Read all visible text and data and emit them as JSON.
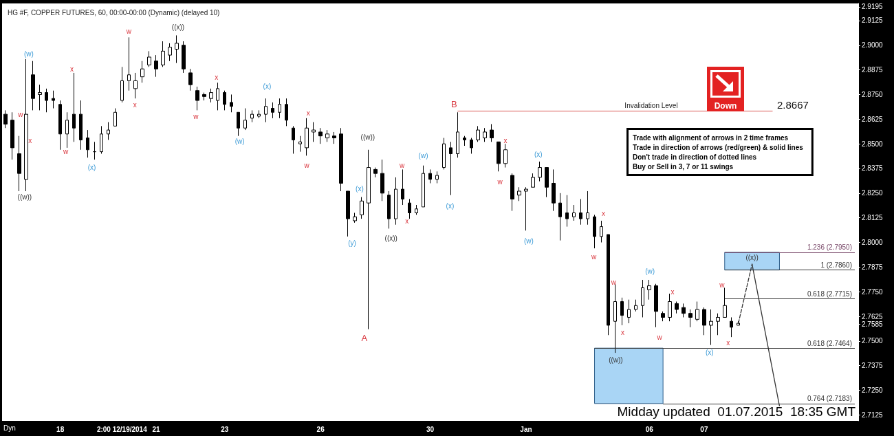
{
  "chart_data": {
    "type": "candlestick",
    "title": "HG #F, COPPER FUTURES, 60, 00:00-00:00 (Dynamic) (delayed 10)",
    "categories": [
      null,
      null,
      null,
      null,
      null,
      null,
      null,
      null,
      "18",
      null,
      null,
      null,
      null,
      null,
      null,
      null,
      null,
      "2:00 12/19/2014",
      null,
      null,
      null,
      null,
      "21",
      null,
      null,
      null,
      null,
      null,
      null,
      null,
      null,
      null,
      "23",
      null,
      null,
      null,
      null,
      null,
      null,
      null,
      null,
      null,
      null,
      null,
      null,
      null,
      "26",
      null,
      null,
      null,
      null,
      null,
      null,
      null,
      null,
      null,
      null,
      null,
      null,
      null,
      null,
      null,
      "30",
      null,
      null,
      null,
      null,
      null,
      null,
      null,
      null,
      null,
      null,
      null,
      null,
      null,
      "Jan",
      null,
      null,
      null,
      null,
      null,
      null,
      null,
      null,
      null,
      null,
      null,
      null,
      null,
      null,
      null,
      null,
      null,
      "06",
      null,
      null,
      null,
      null,
      null,
      null,
      null,
      "07",
      null,
      null,
      null,
      null,
      null,
      null,
      null,
      null,
      null,
      null,
      null,
      null,
      null,
      null,
      null,
      null,
      null,
      null,
      null,
      null,
      null,
      null
    ],
    "series": [
      {
        "color": "#000000",
        "ohlc": [
          [
            2.865,
            2.867,
            2.858,
            2.86
          ],
          [
            2.862,
            2.866,
            2.842,
            2.848
          ],
          [
            2.845,
            2.854,
            2.826,
            2.835
          ],
          [
            2.832,
            2.893,
            2.826,
            2.865
          ],
          [
            2.885,
            2.892,
            2.867,
            2.873
          ],
          [
            2.875,
            2.88,
            2.867,
            2.876
          ],
          [
            2.876,
            2.878,
            2.866,
            2.872
          ],
          [
            2.873,
            2.877,
            2.868,
            2.872
          ],
          [
            2.87,
            2.872,
            2.847,
            2.855
          ],
          [
            2.855,
            2.866,
            2.848,
            2.862
          ],
          [
            2.865,
            2.886,
            2.851,
            2.858
          ],
          [
            2.865,
            2.872,
            2.847,
            2.852
          ],
          [
            2.853,
            2.857,
            2.843,
            2.847
          ],
          [
            2.846,
            2.851,
            2.842,
            2.846
          ],
          [
            2.846,
            2.859,
            2.845,
            2.855
          ],
          [
            2.855,
            2.861,
            2.852,
            2.857
          ],
          [
            2.859,
            2.868,
            2.859,
            2.866
          ],
          [
            2.872,
            2.889,
            2.871,
            2.882
          ],
          [
            2.882,
            2.904,
            2.877,
            2.885
          ],
          [
            2.878,
            2.886,
            2.873,
            2.882
          ],
          [
            2.884,
            2.892,
            2.881,
            2.888
          ],
          [
            2.89,
            2.897,
            2.889,
            2.894
          ],
          [
            2.892,
            2.895,
            2.884,
            2.888
          ],
          [
            2.89,
            2.902,
            2.889,
            2.897
          ],
          [
            2.895,
            2.901,
            2.892,
            2.899
          ],
          [
            2.898,
            2.905,
            2.891,
            2.901
          ],
          [
            2.9,
            2.902,
            2.886,
            2.888
          ],
          [
            2.886,
            2.888,
            2.877,
            2.88
          ],
          [
            2.877,
            2.879,
            2.867,
            2.872
          ],
          [
            2.875,
            2.876,
            2.872,
            2.874
          ],
          [
            2.873,
            2.878,
            2.871,
            2.876
          ],
          [
            2.872,
            2.881,
            2.867,
            2.878
          ],
          [
            2.876,
            2.877,
            2.867,
            2.87
          ],
          [
            2.871,
            2.875,
            2.866,
            2.869
          ],
          [
            2.866,
            2.866,
            2.854,
            2.858
          ],
          [
            2.858,
            2.868,
            2.857,
            2.862
          ],
          [
            2.863,
            2.867,
            2.861,
            2.865
          ],
          [
            2.864,
            2.867,
            2.863,
            2.865
          ],
          [
            2.865,
            2.873,
            2.861,
            2.869
          ],
          [
            2.868,
            2.871,
            2.863,
            2.866
          ],
          [
            2.866,
            2.873,
            2.863,
            2.87
          ],
          [
            2.87,
            2.873,
            2.859,
            2.862
          ],
          [
            2.858,
            2.859,
            2.845,
            2.852
          ],
          [
            2.85,
            2.854,
            2.846,
            2.851
          ],
          [
            2.848,
            2.863,
            2.844,
            2.858
          ],
          [
            2.856,
            2.861,
            2.851,
            2.857
          ],
          [
            2.856,
            2.858,
            2.85,
            2.854
          ],
          [
            2.853,
            2.857,
            2.851,
            2.855
          ],
          [
            2.854,
            2.856,
            2.85,
            2.853
          ],
          [
            2.855,
            2.858,
            2.826,
            2.83
          ],
          [
            2.826,
            2.826,
            2.803,
            2.812
          ],
          [
            2.811,
            2.815,
            2.81,
            2.813
          ],
          [
            2.814,
            2.823,
            2.812,
            2.821
          ],
          [
            2.82,
            2.847,
            2.756,
            2.838
          ],
          [
            2.837,
            2.838,
            2.833,
            2.835
          ],
          [
            2.835,
            2.842,
            2.821,
            2.825
          ],
          [
            2.824,
            2.826,
            2.807,
            2.812
          ],
          [
            2.812,
            2.833,
            2.809,
            2.827
          ],
          [
            2.827,
            2.837,
            2.819,
            2.822
          ],
          [
            2.82,
            2.822,
            2.812,
            2.815
          ],
          [
            2.815,
            2.819,
            2.814,
            2.817
          ],
          [
            2.818,
            2.839,
            2.818,
            2.835
          ],
          [
            2.835,
            2.837,
            2.83,
            2.832
          ],
          [
            2.832,
            2.836,
            2.83,
            2.834
          ],
          [
            2.838,
            2.853,
            2.837,
            2.85
          ],
          [
            2.848,
            2.851,
            2.824,
            2.845
          ],
          [
            2.845,
            2.866,
            2.843,
            2.856
          ],
          [
            2.853,
            2.854,
            2.849,
            2.852
          ],
          [
            2.852,
            2.853,
            2.845,
            2.848
          ],
          [
            2.852,
            2.859,
            2.851,
            2.857
          ],
          [
            2.853,
            2.858,
            2.851,
            2.856
          ],
          [
            2.857,
            2.86,
            2.851,
            2.853
          ],
          [
            2.851,
            2.851,
            2.836,
            2.84
          ],
          [
            2.84,
            2.85,
            2.838,
            2.847
          ],
          [
            2.834,
            2.835,
            2.816,
            2.822
          ],
          [
            2.824,
            2.828,
            2.821,
            2.826
          ],
          [
            2.826,
            2.828,
            2.806,
            2.827
          ],
          [
            2.828,
            2.835,
            2.828,
            2.833
          ],
          [
            2.833,
            2.841,
            2.831,
            2.838
          ],
          [
            2.838,
            2.838,
            2.823,
            2.828
          ],
          [
            2.83,
            2.837,
            2.816,
            2.82
          ],
          [
            2.82,
            2.825,
            2.801,
            2.813
          ],
          [
            2.815,
            2.824,
            2.808,
            2.812
          ],
          [
            2.813,
            2.819,
            2.811,
            2.815
          ],
          [
            2.815,
            2.822,
            2.809,
            2.812
          ],
          [
            2.812,
            2.826,
            2.809,
            2.815
          ],
          [
            2.813,
            2.814,
            2.797,
            2.803
          ],
          [
            2.803,
            2.811,
            2.8,
            2.808
          ],
          [
            2.804,
            2.804,
            2.753,
            2.758
          ],
          [
            2.76,
            2.779,
            2.744,
            2.77
          ],
          [
            2.77,
            2.772,
            2.758,
            2.763
          ],
          [
            2.762,
            2.771,
            2.759,
            2.766
          ],
          [
            2.766,
            2.771,
            2.765,
            2.768
          ],
          [
            2.768,
            2.781,
            2.762,
            2.777
          ],
          [
            2.776,
            2.781,
            2.771,
            2.778
          ],
          [
            2.778,
            2.779,
            2.757,
            2.765
          ],
          [
            2.764,
            2.765,
            2.76,
            2.762
          ],
          [
            2.762,
            2.774,
            2.76,
            2.77
          ],
          [
            2.769,
            2.77,
            2.764,
            2.766
          ],
          [
            2.767,
            2.769,
            2.762,
            2.764
          ],
          [
            2.764,
            2.766,
            2.757,
            2.762
          ],
          [
            2.761,
            2.77,
            2.76,
            2.766
          ],
          [
            2.766,
            2.767,
            2.753,
            2.758
          ],
          [
            2.758,
            2.766,
            2.748,
            2.76
          ],
          [
            2.76,
            2.764,
            2.753,
            2.762
          ],
          [
            2.762,
            2.777,
            2.762,
            2.768
          ],
          [
            2.76,
            2.762,
            2.752,
            2.757
          ],
          [
            2.758,
            2.76,
            2.758,
            2.759
          ],
          null,
          null,
          null,
          null,
          null,
          null,
          null,
          null,
          null,
          null,
          null,
          null,
          null,
          null,
          null,
          null,
          null
        ]
      },
      {
        "type": "line",
        "line_style": "dashed",
        "color": "#333333",
        "values": [
          null,
          null,
          null,
          null,
          null,
          null,
          null,
          null,
          null,
          null,
          null,
          null,
          null,
          null,
          null,
          null,
          null,
          null,
          null,
          null,
          null,
          null,
          null,
          null,
          null,
          null,
          null,
          null,
          null,
          null,
          null,
          null,
          null,
          null,
          null,
          null,
          null,
          null,
          null,
          null,
          null,
          null,
          null,
          null,
          null,
          null,
          null,
          null,
          null,
          null,
          null,
          null,
          null,
          null,
          null,
          null,
          null,
          null,
          null,
          null,
          null,
          null,
          null,
          null,
          null,
          null,
          null,
          null,
          null,
          null,
          null,
          null,
          null,
          null,
          null,
          null,
          null,
          null,
          null,
          null,
          null,
          null,
          null,
          null,
          null,
          null,
          null,
          null,
          null,
          null,
          null,
          null,
          null,
          null,
          null,
          null,
          null,
          null,
          null,
          null,
          null,
          null,
          null,
          null,
          null,
          null,
          null,
          2.759,
          null,
          2.789,
          null,
          null,
          null,
          null,
          null,
          null,
          null,
          null,
          null,
          null,
          null,
          null,
          null,
          null,
          null
        ]
      },
      {
        "type": "line",
        "line_style": "solid",
        "color": "#333333",
        "values": [
          null,
          null,
          null,
          null,
          null,
          null,
          null,
          null,
          null,
          null,
          null,
          null,
          null,
          null,
          null,
          null,
          null,
          null,
          null,
          null,
          null,
          null,
          null,
          null,
          null,
          null,
          null,
          null,
          null,
          null,
          null,
          null,
          null,
          null,
          null,
          null,
          null,
          null,
          null,
          null,
          null,
          null,
          null,
          null,
          null,
          null,
          null,
          null,
          null,
          null,
          null,
          null,
          null,
          null,
          null,
          null,
          null,
          null,
          null,
          null,
          null,
          null,
          null,
          null,
          null,
          null,
          null,
          null,
          null,
          null,
          null,
          null,
          null,
          null,
          null,
          null,
          null,
          null,
          null,
          null,
          null,
          null,
          null,
          null,
          null,
          null,
          null,
          null,
          null,
          null,
          null,
          null,
          null,
          null,
          null,
          null,
          null,
          null,
          null,
          null,
          null,
          null,
          null,
          null,
          null,
          null,
          null,
          null,
          null,
          2.789,
          null,
          null,
          null,
          2.717,
          null,
          null,
          null,
          null,
          null,
          null,
          null,
          null,
          null,
          null,
          null
        ]
      }
    ],
    "ylim": [
      2.7095,
      2.9212
    ],
    "yticks": [
      {
        "value": 2.7125,
        "label": "2.7125"
      },
      {
        "value": 2.725,
        "label": "2.7250"
      },
      {
        "value": 2.7375,
        "label": "2.7375"
      },
      {
        "value": 2.75,
        "label": "2.7500"
      },
      {
        "value": 2.7585,
        "label": "2.7585"
      },
      {
        "value": 2.7625,
        "label": "2.7625"
      },
      {
        "value": 2.775,
        "label": "2.7750"
      },
      {
        "value": 2.7875,
        "label": "2.7875"
      },
      {
        "value": 2.8,
        "label": "2.8000"
      },
      {
        "value": 2.8125,
        "label": "2.8125"
      },
      {
        "value": 2.825,
        "label": "2.8250"
      },
      {
        "value": 2.8375,
        "label": "2.8375"
      },
      {
        "value": 2.85,
        "label": "2.8500"
      },
      {
        "value": 2.8625,
        "label": "2.8625"
      },
      {
        "value": 2.875,
        "label": "2.8750"
      },
      {
        "value": 2.8875,
        "label": "2.8875"
      },
      {
        "value": 2.9,
        "label": "2.9000"
      },
      {
        "value": 2.9125,
        "label": "2.9125"
      },
      {
        "value": 2.9195,
        "label": "2.9195"
      }
    ],
    "ref_lines": [
      {
        "axis": "y",
        "value": 2.8667,
        "label": "Invalidation Level",
        "color": "#d9534f"
      },
      {
        "axis": "y",
        "value": 2.795,
        "label": "1.236 (2.7950)",
        "color": "#7a4a6a"
      },
      {
        "axis": "y",
        "value": 2.786,
        "label": "1 (2.7860)",
        "color": "#333333"
      },
      {
        "axis": "y",
        "value": 2.7715,
        "label": "0.618 (2.7715)",
        "color": "#333333"
      },
      {
        "axis": "y",
        "value": 2.7464,
        "label": "0.618 (2.7464)",
        "color": "#333333"
      },
      {
        "axis": "y",
        "value": 2.7183,
        "label": "0.764 (2.7183)",
        "color": "#333333"
      }
    ],
    "bands": [
      {
        "axis": "y",
        "from": 2.786,
        "to": 2.795,
        "color": "#a9d5f5"
      },
      {
        "axis": "y",
        "from": 2.7183,
        "to": 2.7464,
        "color": "#a9d5f5"
      }
    ],
    "annotations": [
      "((w))",
      "(w)",
      "w",
      "x",
      "w",
      "x",
      "(x)",
      "w",
      "x",
      "((x))",
      "w",
      "x",
      "(w)",
      "(x)",
      "x",
      "w",
      "((w))",
      "(x)",
      "(y)",
      "A",
      "((x))",
      "w",
      "x",
      "(w)",
      "(x)",
      "B",
      "x",
      "w",
      "(x)",
      "(w)",
      "x",
      "w",
      "w",
      "x",
      "((w))",
      "(w)",
      "x",
      "w",
      "(x)",
      "w",
      "x",
      "((x))",
      "Down",
      "Trade with alignment of arrows in 2 time frames",
      "Trade in direction of arrows (red/green) & solid lines",
      "Don't trade in direction of dotted lines",
      "Buy or Sell in 3, 7 or 11 swings",
      "Midday updated  01.07.2015  18:35 GMT",
      "Dyn",
      "2.8667"
    ]
  }
}
